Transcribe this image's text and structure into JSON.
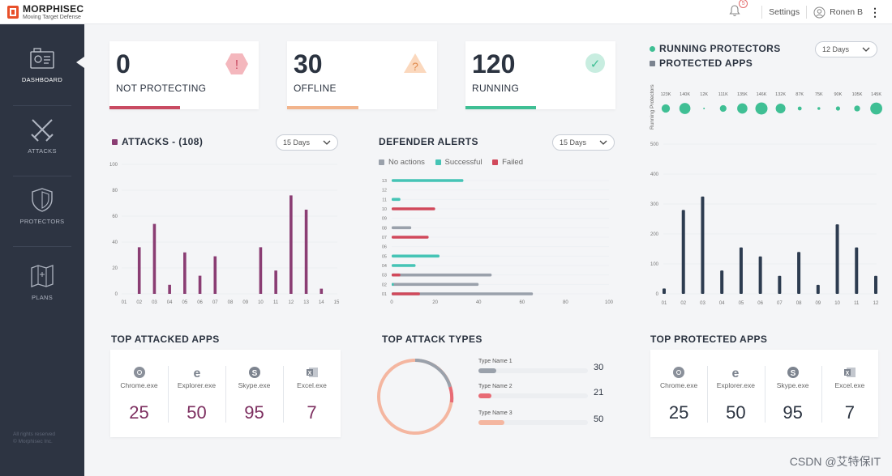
{
  "brand": {
    "name": "MORPHISEC",
    "tagline": "Moving Target Defense",
    "color": "#e8502a"
  },
  "topbar": {
    "notification_count": "5",
    "settings_label": "Settings",
    "user_name": "Ronen B",
    "more_label": "⋮"
  },
  "sidebar": {
    "items": [
      {
        "label": "DASHBOARD",
        "icon": "dashboard-icon"
      },
      {
        "label": "ATTACKS",
        "icon": "swords-icon"
      },
      {
        "label": "PROTECTORS",
        "icon": "shield-icon"
      },
      {
        "label": "PLANS",
        "icon": "map-icon"
      }
    ],
    "copyright_line1": "All rights reserved",
    "copyright_line2": "© Morphisec Inc."
  },
  "stats": [
    {
      "value": "0",
      "label": "NOT PROTECTING",
      "color": "#c94b62",
      "icon": "alert-hexagon-icon",
      "symbol": "!"
    },
    {
      "value": "30",
      "label": "OFFLINE",
      "color": "#f2b48c",
      "icon": "warning-triangle-icon",
      "symbol": "?"
    },
    {
      "value": "120",
      "label": "RUNNING",
      "color": "#3fbf94",
      "icon": "check-circle-icon",
      "symbol": "✓"
    }
  ],
  "attacks": {
    "title": "ATTACKS - (108)",
    "dropdown": "15 Days"
  },
  "defender": {
    "title": "DEFENDER ALERTS",
    "dropdown": "15 Days",
    "legend": [
      {
        "label": "No actions",
        "color": "#9aa1ab"
      },
      {
        "label": "Successful",
        "color": "#45c4b5"
      },
      {
        "label": "Failed",
        "color": "#d1495b"
      }
    ]
  },
  "running": {
    "legend_running": "RUNNING PROTECTORS",
    "legend_protected": "PROTECTED APPS",
    "dropdown": "12 Days",
    "bubble_axis_label": "Running Protectors",
    "bubble_labels": [
      "123K",
      "140K",
      "12K",
      "111K",
      "135K",
      "146K",
      "132K",
      "87K",
      "75K",
      "90K",
      "105K",
      "145K"
    ],
    "bubble_values": [
      123,
      140,
      12,
      111,
      135,
      146,
      132,
      87,
      75,
      90,
      105,
      145
    ]
  },
  "top_attacked": {
    "title": "TOP ATTACKED APPS",
    "apps": [
      {
        "name": "Chrome.exe",
        "value": "25",
        "icon": "chrome-icon"
      },
      {
        "name": "Explorer.exe",
        "value": "50",
        "icon": "ie-icon"
      },
      {
        "name": "Skype.exe",
        "value": "95",
        "icon": "skype-icon"
      },
      {
        "name": "Excel.exe",
        "value": "7",
        "icon": "excel-icon"
      }
    ]
  },
  "top_types": {
    "title": "TOP ATTACK TYPES",
    "types": [
      {
        "name": "Type Name 1",
        "value": "30",
        "color": "#9aa1ab"
      },
      {
        "name": "Type Name 2",
        "value": "21",
        "color": "#e86b75"
      },
      {
        "name": "Type Name 3",
        "value": "50",
        "color": "#f4b6a0"
      }
    ]
  },
  "top_protected": {
    "title": "TOP PROTECTED APPS",
    "apps": [
      {
        "name": "Chrome.exe",
        "value": "25",
        "icon": "chrome-icon"
      },
      {
        "name": "Explorer.exe",
        "value": "50",
        "icon": "ie-icon"
      },
      {
        "name": "Skype.exe",
        "value": "95",
        "icon": "skype-icon"
      },
      {
        "name": "Excel.exe",
        "value": "7",
        "icon": "excel-icon"
      }
    ]
  },
  "watermark": "CSDN @艾特保IT",
  "chart_data": [
    {
      "type": "bar",
      "title": "ATTACKS - (108)",
      "categories": [
        "01",
        "02",
        "03",
        "04",
        "05",
        "06",
        "07",
        "08",
        "09",
        "10",
        "11",
        "12",
        "13",
        "14",
        "15"
      ],
      "values": [
        0,
        36,
        54,
        7,
        32,
        14,
        29,
        0,
        0,
        36,
        18,
        76,
        65,
        4,
        0
      ],
      "ylim": [
        0,
        100
      ],
      "yticks": [
        0,
        20,
        40,
        60,
        80,
        100
      ],
      "color": "#8a3d73"
    },
    {
      "type": "bar",
      "title": "DEFENDER ALERTS",
      "orientation": "horizontal",
      "categories": [
        "01",
        "02",
        "03",
        "04",
        "05",
        "06",
        "07",
        "08",
        "09",
        "10",
        "11",
        "12",
        "13"
      ],
      "series": [
        {
          "name": "No actions",
          "values": [
            65,
            40,
            46,
            0,
            0,
            0,
            0,
            9,
            0,
            0,
            0,
            0,
            0
          ]
        },
        {
          "name": "Successful",
          "values": [
            1,
            1,
            0,
            11,
            22,
            0,
            0,
            0,
            0,
            0,
            4,
            0,
            33
          ]
        },
        {
          "name": "Failed",
          "values": [
            13,
            0,
            4,
            0,
            0,
            0,
            17,
            0,
            0,
            20,
            0,
            0,
            0
          ]
        }
      ],
      "xlim": [
        0,
        100
      ],
      "xticks": [
        0,
        20,
        40,
        60,
        80,
        100
      ]
    },
    {
      "type": "bar",
      "title": "PROTECTED APPS",
      "categories": [
        "01",
        "02",
        "03",
        "04",
        "05",
        "06",
        "07",
        "08",
        "09",
        "10",
        "11",
        "12"
      ],
      "values": [
        18,
        280,
        325,
        78,
        155,
        125,
        60,
        140,
        30,
        232,
        155,
        60
      ],
      "ylim": [
        0,
        500
      ],
      "yticks": [
        0,
        100,
        200,
        300,
        400,
        500
      ],
      "color": "#2d3c50"
    }
  ]
}
